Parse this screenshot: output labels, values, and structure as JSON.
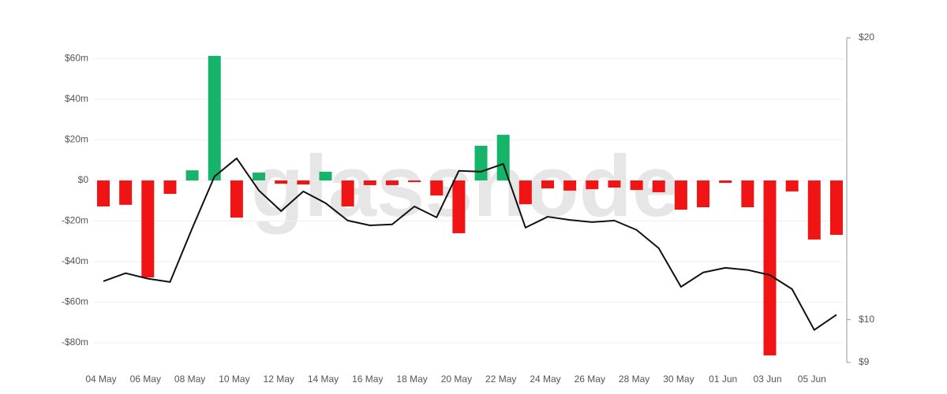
{
  "chart_data": {
    "type": "combo",
    "watermark": "glassnode",
    "categories": [
      "04 May",
      null,
      "06 May",
      null,
      "08 May",
      null,
      "10 May",
      null,
      "12 May",
      null,
      "14 May",
      null,
      "16 May",
      null,
      "18 May",
      null,
      "20 May",
      null,
      "22 May",
      null,
      "24 May",
      null,
      "26 May",
      null,
      "28 May",
      null,
      "30 May",
      null,
      "01 Jun",
      null,
      "03 Jun",
      null,
      "05 Jun",
      null
    ],
    "series": [
      {
        "type": "bar",
        "positive_color": "#16b36a",
        "negative_color": "#f01414",
        "values": [
          -12.8,
          -12,
          -47.8,
          -6.6,
          5,
          61.4,
          -18.3,
          3.9,
          -1.6,
          -2,
          4.3,
          -12.8,
          -2.3,
          -2.3,
          -0.8,
          -7.4,
          -26,
          17.1,
          22.5,
          -11.7,
          -3.9,
          -5,
          -4.3,
          -3.5,
          -4.7,
          -5.8,
          -14.4,
          -13.2,
          -1.2,
          -13.2,
          -86.2,
          -5.4,
          -29.1,
          -26.8
        ]
      },
      {
        "type": "line",
        "axis": "y2",
        "color": "#111111",
        "values": [
          10.99,
          11.21,
          11.06,
          10.97,
          12.52,
          14.22,
          14.87,
          13.74,
          13.06,
          13.71,
          13.32,
          12.76,
          12.61,
          12.64,
          13.21,
          12.86,
          14.42,
          14.39,
          14.67,
          12.54,
          12.88,
          12.78,
          12.71,
          12.76,
          12.47,
          11.92,
          10.84,
          11.23,
          11.36,
          11.3,
          11.16,
          10.78,
          9.75,
          10.12
        ]
      }
    ],
    "ylim": [
      -89.7,
      70.3
    ],
    "yticks": [
      {
        "value": 60,
        "label": "$60m"
      },
      {
        "value": 40,
        "label": "$40m"
      },
      {
        "value": 20,
        "label": "$20m"
      },
      {
        "value": 0,
        "label": "$0"
      },
      {
        "value": -20,
        "label": "-$20m"
      },
      {
        "value": -40,
        "label": "-$40m"
      },
      {
        "value": -60,
        "label": "-$60m"
      },
      {
        "value": -80,
        "label": "-$80m"
      }
    ],
    "y2lim": [
      9,
      20
    ],
    "y2log": true,
    "y2ticks": [
      {
        "value": 20,
        "label": "$20"
      },
      {
        "value": 10,
        "label": "$10"
      },
      {
        "value": 9,
        "label": "$9"
      }
    ],
    "grid": true
  }
}
